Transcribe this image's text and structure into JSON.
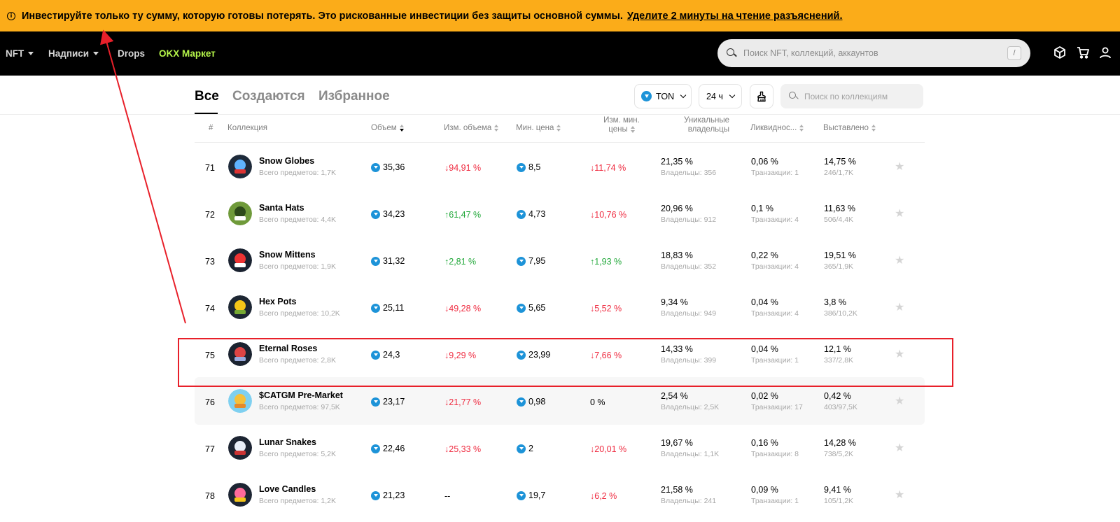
{
  "banner": {
    "text": "Инвестируйте только ту сумму, которую готовы потерять. Это рискованные инвестиции без защиты основной суммы.",
    "link": "Уделите 2 минуты на чтение разъяснений."
  },
  "nav": {
    "nft": "NFT",
    "nadpisi": "Надписи",
    "drops": "Drops",
    "market": "OKX Маркет",
    "search_placeholder": "Поиск NFT, коллекций, аккаунтов",
    "search_shortcut": "/"
  },
  "tabs": [
    "Все",
    "Создаются",
    "Избранное"
  ],
  "filters": {
    "currency": "TON",
    "period": "24 ч",
    "collection_search_placeholder": "Поиск по коллекциям"
  },
  "table": {
    "headers": {
      "rank": "#",
      "collection": "Коллекция",
      "volume": "Объем",
      "volume_change": "Изм. объема",
      "min_price": "Мин. цена",
      "min_price_change": "Изм. мин. цены",
      "owners": "Уникальные владельцы",
      "liquidity": "Ликвиднос...",
      "listed": "Выставлено"
    },
    "rows": [
      {
        "rank": "71",
        "name": "Snow Globes",
        "total": "Всего предметов: 1,7K",
        "volume": "35,36",
        "volume_change": "↓94,91 %",
        "vc_dir": "down",
        "min_price": "8,5",
        "min_change": "↓11,74 %",
        "mc_dir": "down",
        "owners": "21,35 %",
        "owners_sub": "Владельцы: 356",
        "liquidity": "0,06 %",
        "liq_sub": "Транзакции: 1",
        "listed": "14,75 %",
        "listed_sub": "246/1,7K"
      },
      {
        "rank": "72",
        "name": "Santa Hats",
        "total": "Всего предметов: 4,4K",
        "volume": "34,23",
        "volume_change": "↑61,47 %",
        "vc_dir": "up",
        "min_price": "4,73",
        "min_change": "↓10,76 %",
        "mc_dir": "down",
        "owners": "20,96 %",
        "owners_sub": "Владельцы: 912",
        "liquidity": "0,1 %",
        "liq_sub": "Транзакции: 4",
        "listed": "11,63 %",
        "listed_sub": "506/4,4K"
      },
      {
        "rank": "73",
        "name": "Snow Mittens",
        "total": "Всего предметов: 1,9K",
        "volume": "31,32",
        "volume_change": "↑2,81 %",
        "vc_dir": "up",
        "min_price": "7,95",
        "min_change": "↑1,93 %",
        "mc_dir": "up",
        "owners": "18,83 %",
        "owners_sub": "Владельцы: 352",
        "liquidity": "0,22 %",
        "liq_sub": "Транзакции: 4",
        "listed": "19,51 %",
        "listed_sub": "365/1,9K"
      },
      {
        "rank": "74",
        "name": "Hex Pots",
        "total": "Всего предметов: 10,2K",
        "volume": "25,11",
        "volume_change": "↓49,28 %",
        "vc_dir": "down",
        "min_price": "5,65",
        "min_change": "↓5,52 %",
        "mc_dir": "down",
        "owners": "9,34 %",
        "owners_sub": "Владельцы: 949",
        "liquidity": "0,04 %",
        "liq_sub": "Транзакции: 4",
        "listed": "3,8 %",
        "listed_sub": "386/10,2K"
      },
      {
        "rank": "75",
        "name": "Eternal Roses",
        "total": "Всего предметов: 2,8K",
        "volume": "24,3",
        "volume_change": "↓9,29 %",
        "vc_dir": "down",
        "min_price": "23,99",
        "min_change": "↓7,66 %",
        "mc_dir": "down",
        "owners": "14,33 %",
        "owners_sub": "Владельцы: 399",
        "liquidity": "0,04 %",
        "liq_sub": "Транзакции: 1",
        "listed": "12,1 %",
        "listed_sub": "337/2,8K"
      },
      {
        "rank": "76",
        "name": "$CATGM Pre-Market",
        "total": "Всего предметов: 97,5K",
        "volume": "23,17",
        "volume_change": "↓21,77 %",
        "vc_dir": "down",
        "min_price": "0,98",
        "min_change": "0 %",
        "mc_dir": "flat",
        "owners": "2,54 %",
        "owners_sub": "Владельцы: 2,5K",
        "liquidity": "0,02 %",
        "liq_sub": "Транзакции: 17",
        "listed": "0,42 %",
        "listed_sub": "403/97,5K"
      },
      {
        "rank": "77",
        "name": "Lunar Snakes",
        "total": "Всего предметов: 5,2K",
        "volume": "22,46",
        "volume_change": "↓25,33 %",
        "vc_dir": "down",
        "min_price": "2",
        "min_change": "↓20,01 %",
        "mc_dir": "down",
        "owners": "19,67 %",
        "owners_sub": "Владельцы: 1,1K",
        "liquidity": "0,16 %",
        "liq_sub": "Транзакции: 8",
        "listed": "14,28 %",
        "listed_sub": "738/5,2K"
      },
      {
        "rank": "78",
        "name": "Love Candles",
        "total": "Всего предметов: 1,2K",
        "volume": "21,23",
        "volume_change": "--",
        "vc_dir": "flat",
        "min_price": "19,7",
        "min_change": "↓6,2 %",
        "mc_dir": "down",
        "owners": "21,58 %",
        "owners_sub": "Владельцы: 241",
        "liquidity": "0,09 %",
        "liq_sub": "Транзакции: 1",
        "listed": "9,41 %",
        "listed_sub": "105/1,2K"
      }
    ]
  },
  "colors": {
    "banner": "#fbac19",
    "down": "#ef2c41",
    "up": "#22a83a",
    "ton": "#1d93d8",
    "market": "#b5f54a",
    "annotation": "#e8202a"
  },
  "icons": {
    "banner": "info-icon",
    "nav": [
      "box-icon",
      "cart-icon",
      "user-icon"
    ],
    "row": "star-icon"
  }
}
